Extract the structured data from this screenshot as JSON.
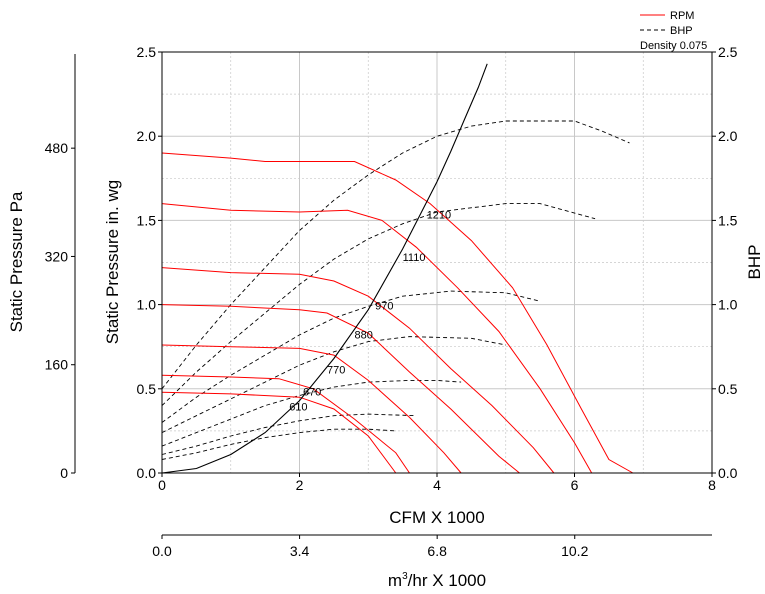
{
  "chart_data": {
    "type": "line",
    "xlabel": "CFM X 1000",
    "x_ticks": [
      "0",
      "2",
      "4",
      "6",
      "8"
    ],
    "xlim": [
      0,
      8
    ],
    "ylabel_left": "Static Pressure in. wg",
    "y_ticks": [
      "0.0",
      "0.5",
      "1.0",
      "1.5",
      "2.0",
      "2.5"
    ],
    "ylim": [
      0,
      2.5
    ],
    "ylabel_right": "BHP",
    "y2_ticks": [
      "0.0",
      "0.5",
      "1.0",
      "1.5",
      "2.0",
      "2.5"
    ],
    "y2lim": [
      0,
      2.5
    ],
    "pa_label": "Static Pressure Pa",
    "pa_ticks": [
      "0",
      "160",
      "320",
      "480"
    ],
    "m3_label_main": "m",
    "m3_label_sup": "3",
    "m3_label_rest": "/hr X 1000",
    "m3_ticks": [
      "0.0",
      "3.4",
      "6.8",
      "10.2"
    ],
    "legend": {
      "rpm": "RPM",
      "bhp": "BHP",
      "density": "Density 0.075"
    },
    "grid": true,
    "rpm_curves": [
      {
        "label": "610",
        "points": [
          [
            0,
            0.48
          ],
          [
            1,
            0.47
          ],
          [
            2,
            0.45
          ],
          [
            2.5,
            0.38
          ],
          [
            3,
            0.22
          ],
          [
            3.4,
            0
          ]
        ]
      },
      {
        "label": "670",
        "points": [
          [
            0,
            0.58
          ],
          [
            1,
            0.57
          ],
          [
            1.7,
            0.56
          ],
          [
            2.2,
            0.5
          ],
          [
            2.8,
            0.32
          ],
          [
            3.4,
            0.12
          ],
          [
            3.6,
            0
          ]
        ]
      },
      {
        "label": "770",
        "points": [
          [
            0,
            0.76
          ],
          [
            1,
            0.75
          ],
          [
            2,
            0.74
          ],
          [
            2.5,
            0.7
          ],
          [
            3,
            0.55
          ],
          [
            3.6,
            0.33
          ],
          [
            4.1,
            0.12
          ],
          [
            4.35,
            0
          ]
        ]
      },
      {
        "label": "880",
        "points": [
          [
            0,
            1.0
          ],
          [
            1,
            0.99
          ],
          [
            2,
            0.97
          ],
          [
            2.4,
            0.95
          ],
          [
            3,
            0.83
          ],
          [
            3.6,
            0.6
          ],
          [
            4.2,
            0.38
          ],
          [
            4.9,
            0.1
          ],
          [
            5.2,
            0
          ]
        ]
      },
      {
        "label": "970",
        "points": [
          [
            0,
            1.22
          ],
          [
            1,
            1.19
          ],
          [
            2,
            1.18
          ],
          [
            2.5,
            1.14
          ],
          [
            3,
            1.05
          ],
          [
            3.6,
            0.86
          ],
          [
            4.2,
            0.62
          ],
          [
            4.8,
            0.4
          ],
          [
            5.4,
            0.15
          ],
          [
            5.7,
            0
          ]
        ]
      },
      {
        "label": "1110",
        "points": [
          [
            0,
            1.6
          ],
          [
            1,
            1.56
          ],
          [
            2,
            1.55
          ],
          [
            2.7,
            1.56
          ],
          [
            3.2,
            1.5
          ],
          [
            3.7,
            1.34
          ],
          [
            4.3,
            1.1
          ],
          [
            4.9,
            0.84
          ],
          [
            5.5,
            0.5
          ],
          [
            6.0,
            0.18
          ],
          [
            6.25,
            0
          ]
        ]
      },
      {
        "label": "1210",
        "points": [
          [
            0,
            1.9
          ],
          [
            1,
            1.87
          ],
          [
            1.5,
            1.85
          ],
          [
            2.8,
            1.85
          ],
          [
            3.4,
            1.74
          ],
          [
            3.9,
            1.6
          ],
          [
            4.5,
            1.38
          ],
          [
            5.1,
            1.1
          ],
          [
            5.6,
            0.76
          ],
          [
            6.1,
            0.38
          ],
          [
            6.5,
            0.08
          ],
          [
            6.85,
            0
          ]
        ]
      }
    ],
    "bhp_curves": [
      {
        "label": "610",
        "points": [
          [
            0,
            0.08
          ],
          [
            0.5,
            0.12
          ],
          [
            1,
            0.17
          ],
          [
            1.5,
            0.21
          ],
          [
            2,
            0.24
          ],
          [
            2.5,
            0.26
          ],
          [
            3,
            0.26
          ],
          [
            3.4,
            0.25
          ]
        ]
      },
      {
        "label": "670",
        "points": [
          [
            0,
            0.11
          ],
          [
            0.5,
            0.16
          ],
          [
            1,
            0.22
          ],
          [
            1.5,
            0.27
          ],
          [
            2,
            0.31
          ],
          [
            2.5,
            0.34
          ],
          [
            3,
            0.35
          ],
          [
            3.7,
            0.34
          ]
        ]
      },
      {
        "label": "770",
        "points": [
          [
            0,
            0.16
          ],
          [
            0.5,
            0.24
          ],
          [
            1,
            0.32
          ],
          [
            1.5,
            0.4
          ],
          [
            2,
            0.46
          ],
          [
            2.5,
            0.51
          ],
          [
            3,
            0.54
          ],
          [
            3.6,
            0.55
          ],
          [
            4,
            0.55
          ],
          [
            4.35,
            0.54
          ]
        ]
      },
      {
        "label": "880",
        "points": [
          [
            0,
            0.24
          ],
          [
            0.5,
            0.34
          ],
          [
            1,
            0.44
          ],
          [
            1.5,
            0.54
          ],
          [
            2,
            0.64
          ],
          [
            2.5,
            0.72
          ],
          [
            3,
            0.78
          ],
          [
            3.6,
            0.81
          ],
          [
            4.5,
            0.8
          ],
          [
            5.0,
            0.76
          ]
        ]
      },
      {
        "label": "970",
        "points": [
          [
            0,
            0.3
          ],
          [
            0.5,
            0.45
          ],
          [
            1,
            0.58
          ],
          [
            1.5,
            0.7
          ],
          [
            2,
            0.82
          ],
          [
            2.5,
            0.92
          ],
          [
            3,
            0.99
          ],
          [
            3.5,
            1.05
          ],
          [
            4.2,
            1.08
          ],
          [
            5,
            1.07
          ],
          [
            5.5,
            1.02
          ]
        ]
      },
      {
        "label": "1110",
        "points": [
          [
            0,
            0.4
          ],
          [
            0.5,
            0.6
          ],
          [
            1,
            0.78
          ],
          [
            1.5,
            0.95
          ],
          [
            2,
            1.12
          ],
          [
            2.5,
            1.27
          ],
          [
            3,
            1.39
          ],
          [
            3.5,
            1.48
          ],
          [
            4,
            1.55
          ],
          [
            5,
            1.6
          ],
          [
            5.5,
            1.6
          ],
          [
            6.3,
            1.51
          ]
        ]
      },
      {
        "label": "1210",
        "points": [
          [
            0,
            0.5
          ],
          [
            0.5,
            0.76
          ],
          [
            1,
            1.0
          ],
          [
            1.5,
            1.22
          ],
          [
            2,
            1.44
          ],
          [
            2.5,
            1.62
          ],
          [
            3,
            1.77
          ],
          [
            3.5,
            1.9
          ],
          [
            4,
            2.0
          ],
          [
            4.5,
            2.06
          ],
          [
            5,
            2.09
          ],
          [
            6,
            2.09
          ],
          [
            6.4,
            2.03
          ],
          [
            6.8,
            1.96
          ]
        ]
      }
    ],
    "system_curve": [
      [
        0,
        0
      ],
      [
        0.5,
        0.027
      ],
      [
        1,
        0.11
      ],
      [
        1.5,
        0.24
      ],
      [
        2,
        0.43
      ],
      [
        2.5,
        0.68
      ],
      [
        3,
        0.97
      ],
      [
        3.5,
        1.33
      ],
      [
        4,
        1.73
      ],
      [
        4.2,
        1.91
      ],
      [
        4.4,
        2.1
      ],
      [
        4.6,
        2.29
      ],
      [
        4.73,
        2.43
      ]
    ],
    "rpm_label_positions": [
      {
        "label": "610",
        "x": 1.85,
        "y": 0.37
      },
      {
        "label": "670",
        "x": 2.05,
        "y": 0.46
      },
      {
        "label": "770",
        "x": 2.4,
        "y": 0.59
      },
      {
        "label": "880",
        "x": 2.8,
        "y": 0.8
      },
      {
        "label": "970",
        "x": 3.1,
        "y": 0.97
      },
      {
        "label": "1110",
        "x": 3.5,
        "y": 1.26
      },
      {
        "label": "1210",
        "x": 3.85,
        "y": 1.51
      }
    ]
  }
}
